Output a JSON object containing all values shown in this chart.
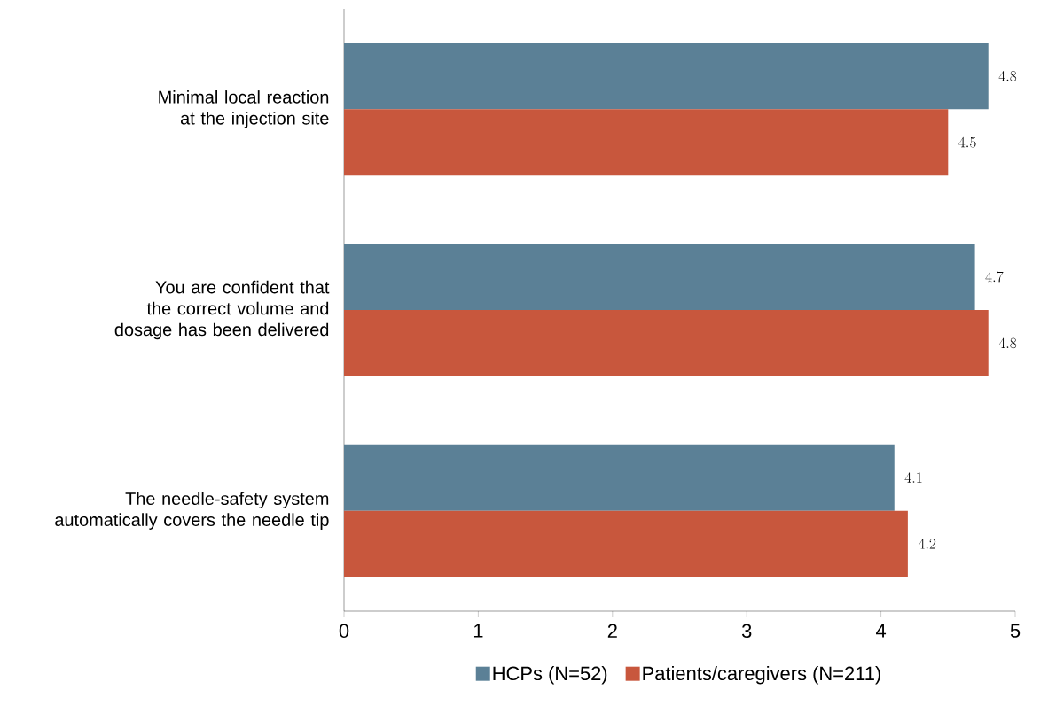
{
  "chart_data": {
    "type": "bar",
    "orientation": "horizontal",
    "categories": [
      "Minimal local reaction at the injection site",
      "You are confident that the correct volume and dosage has been delivered",
      "The needle-safety system automatically covers the needle tip"
    ],
    "series": [
      {
        "name": "HCPs (N=52)",
        "color": "#5b8096",
        "values": [
          4.8,
          4.7,
          4.1
        ]
      },
      {
        "name": "Patients/caregivers (N=211)",
        "color": "#c8573d",
        "values": [
          4.5,
          4.8,
          4.2
        ]
      }
    ],
    "xlim": [
      0,
      5
    ],
    "xticks": [
      0,
      1,
      2,
      3,
      4,
      5
    ],
    "grid": false,
    "legend": "bottom",
    "data_labels": true
  }
}
